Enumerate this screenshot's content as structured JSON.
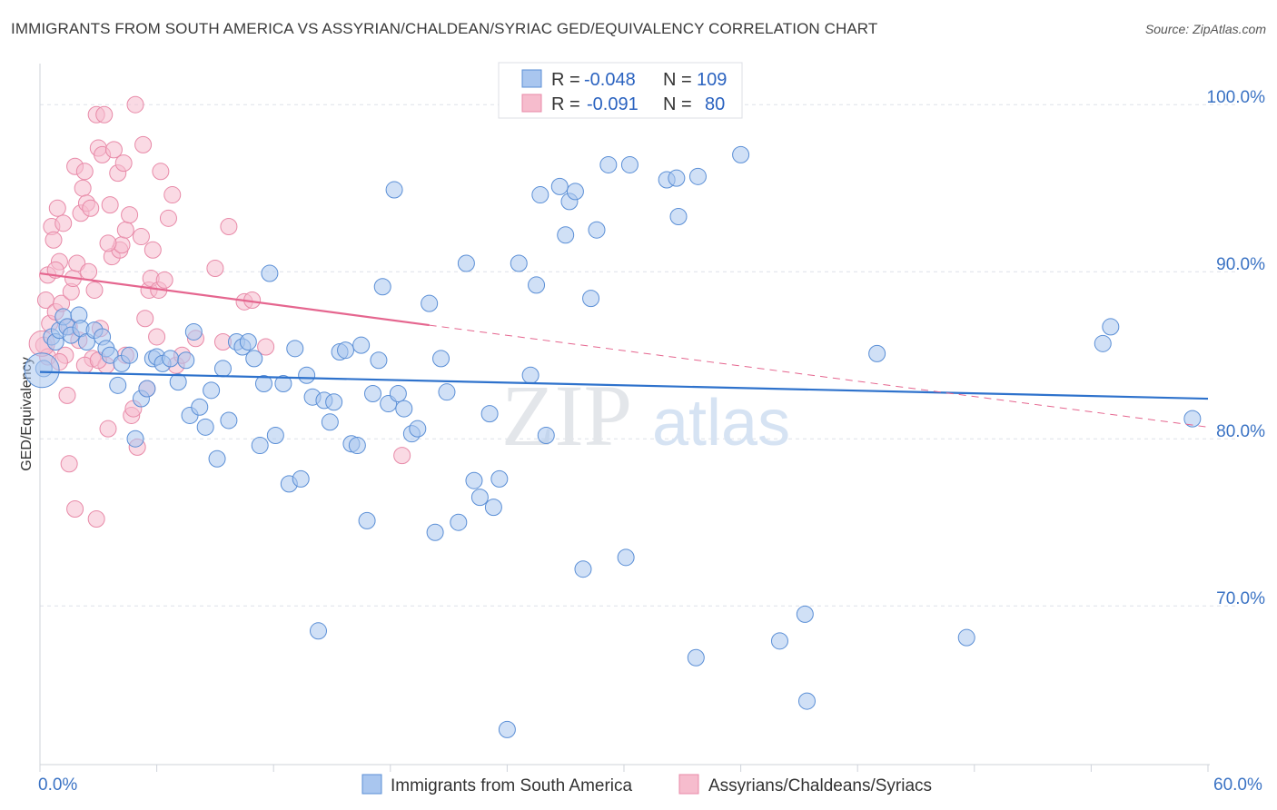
{
  "header": {
    "title": "IMMIGRANTS FROM SOUTH AMERICA VS ASSYRIAN/CHALDEAN/SYRIAC GED/EQUIVALENCY CORRELATION CHART",
    "source": "Source: ZipAtlas.com"
  },
  "watermark": {
    "zip": "ZIP",
    "atlas": "atlas"
  },
  "legend": {
    "rows": [
      {
        "r_label": "R = ",
        "r_value": "-0.048",
        "n_label": "N = ",
        "n_value": "109"
      },
      {
        "r_label": "R = ",
        "r_value": "-0.091",
        "n_label": "N = ",
        "n_value": "80"
      }
    ]
  },
  "colors": {
    "blue_fill": "#a9c6ef",
    "blue_stroke": "#5b8fd6",
    "blue_line": "#2e72cc",
    "pink_fill": "#f6bccd",
    "pink_stroke": "#e88aa8",
    "pink_line": "#e5668f",
    "grid": "#dde1e8",
    "tick_text": "#3b73c4"
  },
  "chart_data": {
    "type": "scatter",
    "title": "IMMIGRANTS FROM SOUTH AMERICA VS ASSYRIAN/CHALDEAN/SYRIAC GED/EQUIVALENCY CORRELATION CHART",
    "xlabel": "",
    "ylabel": "GED/Equivalency",
    "xlim": [
      0,
      60
    ],
    "ylim": [
      60.5,
      103
    ],
    "x_tick_labels": [
      "0.0%",
      "60.0%"
    ],
    "y_ticks": [
      {
        "value": 100,
        "label": "100.0%"
      },
      {
        "value": 90,
        "label": "90.0%"
      },
      {
        "value": 80,
        "label": "80.0%"
      },
      {
        "value": 70,
        "label": "70.0%"
      }
    ],
    "grid": true,
    "legend_position": "top-center",
    "series": [
      {
        "name": "Immigrants from South America",
        "R": -0.048,
        "N": 109,
        "trend": {
          "x1": 0,
          "y1": 84.0,
          "x2": 60,
          "y2": 82.4
        },
        "points": [
          [
            0.2,
            84.2
          ],
          [
            0.6,
            86.1
          ],
          [
            0.8,
            85.8
          ],
          [
            1.0,
            86.5
          ],
          [
            1.2,
            87.3
          ],
          [
            1.4,
            86.7
          ],
          [
            1.6,
            86.2
          ],
          [
            2.0,
            87.4
          ],
          [
            2.1,
            86.6
          ],
          [
            2.4,
            85.8
          ],
          [
            2.8,
            86.5
          ],
          [
            3.2,
            86.1
          ],
          [
            3.4,
            85.4
          ],
          [
            3.6,
            85.0
          ],
          [
            4.2,
            84.5
          ],
          [
            4.6,
            85.0
          ],
          [
            4.0,
            83.2
          ],
          [
            4.9,
            80.0
          ],
          [
            5.2,
            82.4
          ],
          [
            5.5,
            83.0
          ],
          [
            5.8,
            84.8
          ],
          [
            6.0,
            84.9
          ],
          [
            6.3,
            84.5
          ],
          [
            6.7,
            84.8
          ],
          [
            7.1,
            83.4
          ],
          [
            7.5,
            84.7
          ],
          [
            7.7,
            81.4
          ],
          [
            7.9,
            86.4
          ],
          [
            8.2,
            81.9
          ],
          [
            8.5,
            80.7
          ],
          [
            8.8,
            82.9
          ],
          [
            9.1,
            78.8
          ],
          [
            9.4,
            84.2
          ],
          [
            9.7,
            81.1
          ],
          [
            10.1,
            85.8
          ],
          [
            10.4,
            85.5
          ],
          [
            10.7,
            85.8
          ],
          [
            11.0,
            84.8
          ],
          [
            11.3,
            79.6
          ],
          [
            11.5,
            83.3
          ],
          [
            11.8,
            89.9
          ],
          [
            12.1,
            80.2
          ],
          [
            12.5,
            83.3
          ],
          [
            12.8,
            77.3
          ],
          [
            13.1,
            85.4
          ],
          [
            13.4,
            77.6
          ],
          [
            13.7,
            83.8
          ],
          [
            14.0,
            82.5
          ],
          [
            14.3,
            68.5
          ],
          [
            14.6,
            82.3
          ],
          [
            14.9,
            81.0
          ],
          [
            15.1,
            82.2
          ],
          [
            15.4,
            85.2
          ],
          [
            15.7,
            85.3
          ],
          [
            16.0,
            79.7
          ],
          [
            16.3,
            79.6
          ],
          [
            16.5,
            85.6
          ],
          [
            16.8,
            75.1
          ],
          [
            17.1,
            82.7
          ],
          [
            17.4,
            84.7
          ],
          [
            17.6,
            89.1
          ],
          [
            17.9,
            82.1
          ],
          [
            18.2,
            94.9
          ],
          [
            18.4,
            82.7
          ],
          [
            18.7,
            81.8
          ],
          [
            19.1,
            80.3
          ],
          [
            19.4,
            80.6
          ],
          [
            20.0,
            88.1
          ],
          [
            20.3,
            74.4
          ],
          [
            20.6,
            84.8
          ],
          [
            20.9,
            82.8
          ],
          [
            21.5,
            75.0
          ],
          [
            21.9,
            90.5
          ],
          [
            22.3,
            77.5
          ],
          [
            22.6,
            76.5
          ],
          [
            23.1,
            81.5
          ],
          [
            23.3,
            75.9
          ],
          [
            23.6,
            77.6
          ],
          [
            24.0,
            62.6
          ],
          [
            24.6,
            90.5
          ],
          [
            25.2,
            83.8
          ],
          [
            25.5,
            89.2
          ],
          [
            25.7,
            94.6
          ],
          [
            26.0,
            80.2
          ],
          [
            26.7,
            95.1
          ],
          [
            27.0,
            92.2
          ],
          [
            27.2,
            94.2
          ],
          [
            27.5,
            94.8
          ],
          [
            27.9,
            72.2
          ],
          [
            28.3,
            88.4
          ],
          [
            28.6,
            92.5
          ],
          [
            29.2,
            96.4
          ],
          [
            30.3,
            96.4
          ],
          [
            30.1,
            72.9
          ],
          [
            32.2,
            95.5
          ],
          [
            32.7,
            95.6
          ],
          [
            32.8,
            93.3
          ],
          [
            33.7,
            66.9
          ],
          [
            33.8,
            95.7
          ],
          [
            35.5,
            100
          ],
          [
            36.0,
            97.0
          ],
          [
            38.0,
            67.9
          ],
          [
            39.3,
            69.5
          ],
          [
            39.4,
            64.3
          ],
          [
            43.0,
            85.1
          ],
          [
            47.6,
            68.1
          ],
          [
            54.6,
            85.7
          ],
          [
            55.0,
            86.7
          ],
          [
            59.2,
            81.2
          ]
        ]
      },
      {
        "name": "Assyrians/Chaldeans/Syriacs",
        "R": -0.091,
        "N": 80,
        "trend": {
          "x1": 0,
          "y1": 89.9,
          "x2": 20,
          "y2": 86.8,
          "dash_x2": 60,
          "dash_y2": 80.7
        },
        "points": [
          [
            0.2,
            85.6
          ],
          [
            0.3,
            88.3
          ],
          [
            0.4,
            89.8
          ],
          [
            0.5,
            86.9
          ],
          [
            0.6,
            92.7
          ],
          [
            0.7,
            91.9
          ],
          [
            0.8,
            87.6
          ],
          [
            0.9,
            93.8
          ],
          [
            1.0,
            90.6
          ],
          [
            1.1,
            88.1
          ],
          [
            1.2,
            92.9
          ],
          [
            1.3,
            85.0
          ],
          [
            1.4,
            82.6
          ],
          [
            1.5,
            86.7
          ],
          [
            1.6,
            88.8
          ],
          [
            1.7,
            89.6
          ],
          [
            1.8,
            96.3
          ],
          [
            1.9,
            90.5
          ],
          [
            2.0,
            85.9
          ],
          [
            2.1,
            93.5
          ],
          [
            2.2,
            95.0
          ],
          [
            2.3,
            96.0
          ],
          [
            2.4,
            94.1
          ],
          [
            2.5,
            90.0
          ],
          [
            2.6,
            93.8
          ],
          [
            2.7,
            84.8
          ],
          [
            2.8,
            88.9
          ],
          [
            2.9,
            99.4
          ],
          [
            3.0,
            97.4
          ],
          [
            3.1,
            86.6
          ],
          [
            3.2,
            97.0
          ],
          [
            3.3,
            99.4
          ],
          [
            3.4,
            84.4
          ],
          [
            3.5,
            80.6
          ],
          [
            3.6,
            94.0
          ],
          [
            3.7,
            90.9
          ],
          [
            3.8,
            97.3
          ],
          [
            4.0,
            95.9
          ],
          [
            4.1,
            91.3
          ],
          [
            4.2,
            91.6
          ],
          [
            4.3,
            96.5
          ],
          [
            4.4,
            92.5
          ],
          [
            4.6,
            93.4
          ],
          [
            4.7,
            81.4
          ],
          [
            4.8,
            81.8
          ],
          [
            4.9,
            100.0
          ],
          [
            5.0,
            79.5
          ],
          [
            5.2,
            92.1
          ],
          [
            5.3,
            97.6
          ],
          [
            5.4,
            87.2
          ],
          [
            5.6,
            88.9
          ],
          [
            5.7,
            89.6
          ],
          [
            5.8,
            91.3
          ],
          [
            6.0,
            86.1
          ],
          [
            6.1,
            88.9
          ],
          [
            6.2,
            96.0
          ],
          [
            6.4,
            89.5
          ],
          [
            6.6,
            93.2
          ],
          [
            6.8,
            94.6
          ],
          [
            7.0,
            84.4
          ],
          [
            1.5,
            78.5
          ],
          [
            1.8,
            75.8
          ],
          [
            2.9,
            75.2
          ],
          [
            9.0,
            90.2
          ],
          [
            9.4,
            85.8
          ],
          [
            9.7,
            92.7
          ],
          [
            10.5,
            88.2
          ],
          [
            10.9,
            88.3
          ],
          [
            11.6,
            85.5
          ],
          [
            18.6,
            79.0
          ],
          [
            0.4,
            84.9
          ],
          [
            1.0,
            84.6
          ],
          [
            2.3,
            84.4
          ],
          [
            3.0,
            84.7
          ],
          [
            4.4,
            85.0
          ],
          [
            7.3,
            85.0
          ],
          [
            8.0,
            86.0
          ],
          [
            0.8,
            90.1
          ],
          [
            3.5,
            91.7
          ],
          [
            5.5,
            83.0
          ]
        ]
      }
    ]
  }
}
